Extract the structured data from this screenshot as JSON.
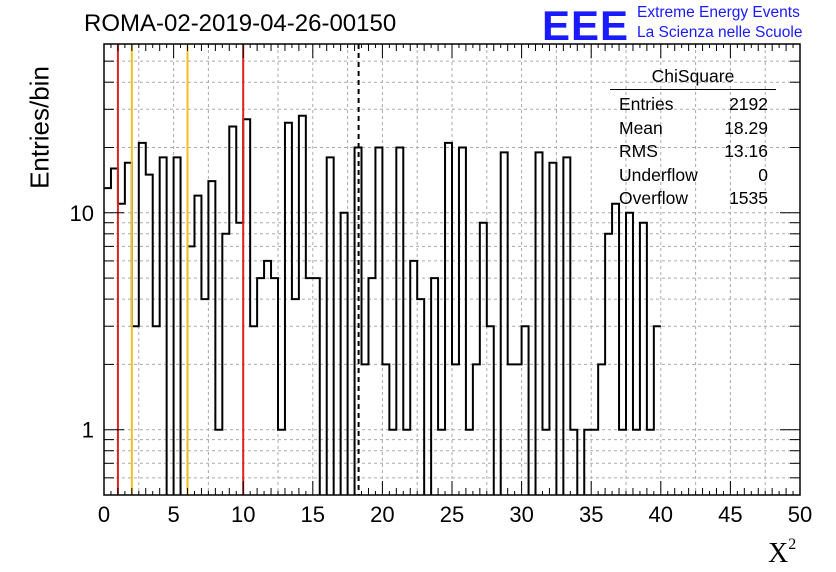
{
  "title": "ROMA-02-2019-04-26-00150",
  "logo": {
    "mark": "EEE",
    "line1": "Extreme Energy Events",
    "line2": "La Scienza nelle Scuole"
  },
  "stats": {
    "title": "ChiSquare",
    "rows": [
      {
        "label": "Entries",
        "value": "2192"
      },
      {
        "label": "Mean",
        "value": "18.29"
      },
      {
        "label": "RMS",
        "value": "13.16"
      },
      {
        "label": "Underflow",
        "value": "0"
      },
      {
        "label": "Overflow",
        "value": "1535"
      }
    ]
  },
  "chart_data": {
    "type": "histogram",
    "ylabel": "Entries/bin",
    "xlabel": "X",
    "xlabel_sup": "2",
    "xlim": [
      0,
      50
    ],
    "ylim": [
      0.5,
      60
    ],
    "yscale": "log",
    "grid": true,
    "bin_width": 0.5,
    "x_ticks": [
      0,
      5,
      10,
      15,
      20,
      25,
      30,
      35,
      40,
      45,
      50
    ],
    "y_ticks": [
      {
        "value": 1,
        "label": "1"
      },
      {
        "value": 10,
        "label": "10"
      }
    ],
    "counts": [
      13,
      16,
      11,
      17,
      3,
      21,
      15,
      3,
      18,
      0,
      18,
      0,
      7,
      12,
      4,
      14,
      1,
      8,
      25,
      9,
      27,
      3,
      5,
      6,
      5,
      1,
      26,
      4,
      28,
      5,
      5,
      0,
      18,
      0,
      10,
      0,
      20,
      2,
      5,
      20,
      2,
      1,
      20,
      1,
      6,
      4,
      0,
      5,
      1,
      21,
      2,
      20,
      1,
      2,
      9,
      3,
      0,
      19,
      2,
      2,
      3,
      0,
      19,
      1,
      17,
      0,
      18,
      1,
      0,
      1,
      1,
      2,
      8,
      11,
      1,
      10,
      1,
      9,
      1,
      3
    ],
    "vertical_lines": [
      {
        "x": 1,
        "color": "#dd2222",
        "style": "solid"
      },
      {
        "x": 2,
        "color": "#f0c020",
        "style": "solid"
      },
      {
        "x": 6,
        "color": "#f0c020",
        "style": "solid"
      },
      {
        "x": 10,
        "color": "#dd2222",
        "style": "solid"
      },
      {
        "x": 18.29,
        "color": "#000000",
        "style": "dashed"
      }
    ],
    "colors": {
      "histogram": "#000000",
      "grid": "#aaaaaa"
    }
  }
}
